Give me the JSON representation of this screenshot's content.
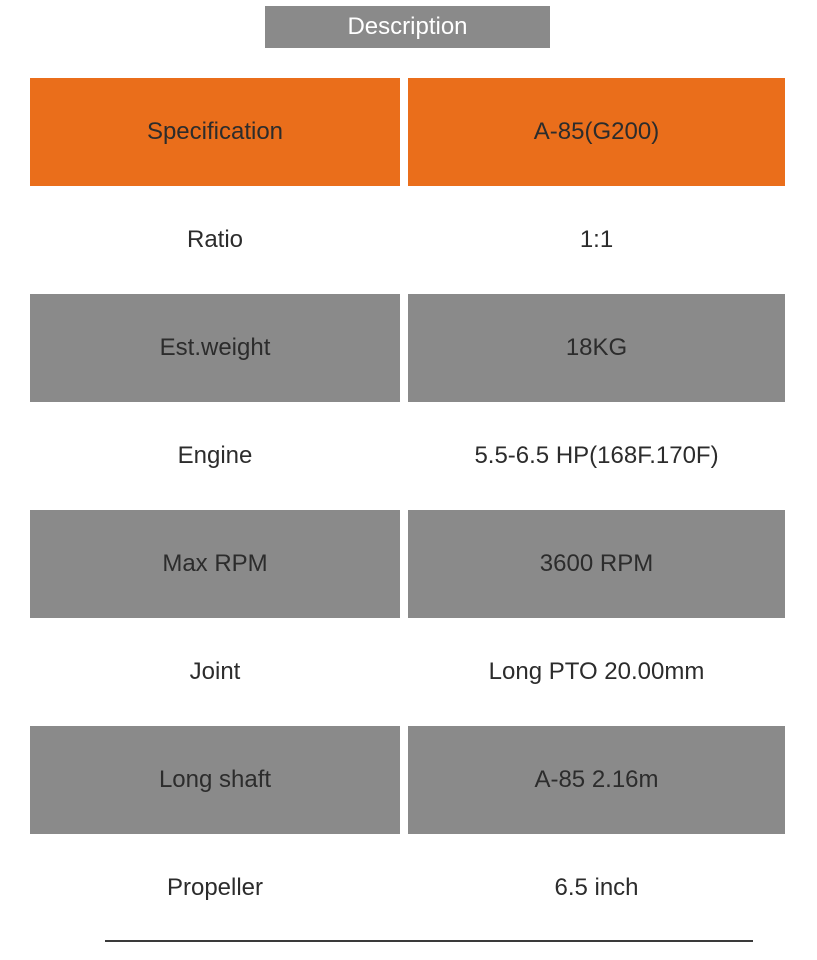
{
  "header": {
    "label": "Description",
    "background_color": "#8a8a8a",
    "text_color": "#ffffff",
    "font_size": 24
  },
  "table": {
    "header_row": {
      "background_color": "#ea6e1b",
      "text_color": "#2c2c2c",
      "cells": [
        "Specification",
        "A-85(G200)"
      ]
    },
    "rows": [
      {
        "background_color": "#ffffff",
        "text_color": "#2c2c2c",
        "cells": [
          "Ratio",
          "1:1"
        ]
      },
      {
        "background_color": "#8a8a8a",
        "text_color": "#2c2c2c",
        "cells": [
          "Est.weight",
          "18KG"
        ]
      },
      {
        "background_color": "#ffffff",
        "text_color": "#2c2c2c",
        "cells": [
          "Engine",
          "5.5-6.5 HP(168F.170F)"
        ]
      },
      {
        "background_color": "#8a8a8a",
        "text_color": "#2c2c2c",
        "cells": [
          "Max RPM",
          "3600 RPM"
        ]
      },
      {
        "background_color": "#ffffff",
        "text_color": "#2c2c2c",
        "cells": [
          "Joint",
          "Long PTO 20.00mm"
        ]
      },
      {
        "background_color": "#8a8a8a",
        "text_color": "#2c2c2c",
        "cells": [
          "Long shaft",
          "A-85  2.16m"
        ]
      },
      {
        "background_color": "#ffffff",
        "text_color": "#2c2c2c",
        "cells": [
          "Propeller",
          "6.5 inch"
        ]
      }
    ]
  }
}
